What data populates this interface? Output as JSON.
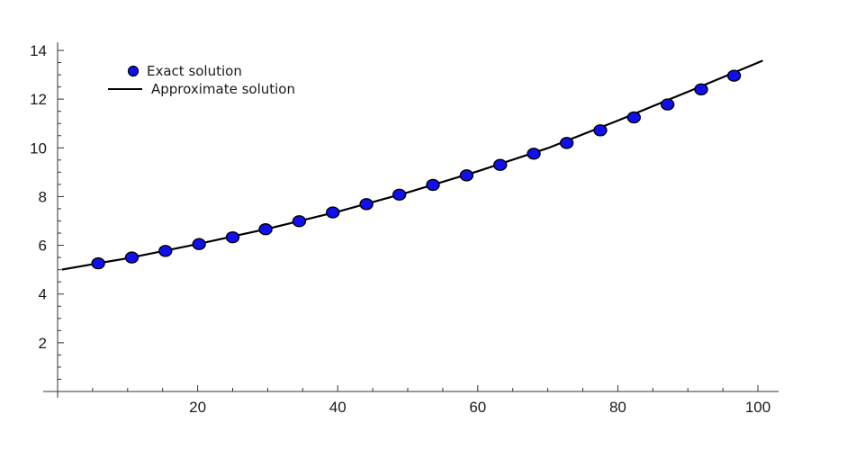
{
  "chart_data": {
    "type": "line",
    "title": "",
    "xlabel": "",
    "ylabel": "",
    "xlim": [
      0,
      103
    ],
    "ylim": [
      0,
      14.4
    ],
    "x_ticks": [
      20,
      40,
      60,
      80,
      100
    ],
    "y_ticks": [
      2,
      4,
      6,
      8,
      10,
      12,
      14
    ],
    "x_tick_labels": [
      "20",
      "40",
      "60",
      "80",
      "100"
    ],
    "y_tick_labels": [
      "2",
      "4",
      "6",
      "8",
      "10",
      "12",
      "14"
    ],
    "grid": false,
    "legend_position": "top-left",
    "series": [
      {
        "name": "Exact solution",
        "style": "markers",
        "color": "#1010ee",
        "edge_color": "#000000",
        "x": [
          5.8,
          10.6,
          15.4,
          20.2,
          25.0,
          29.7,
          34.5,
          39.3,
          44.1,
          48.8,
          53.6,
          58.4,
          63.2,
          68.0,
          72.7,
          77.5,
          82.3,
          87.1,
          91.9,
          96.6
        ],
        "y": [
          5.26,
          5.5,
          5.77,
          6.05,
          6.33,
          6.66,
          6.99,
          7.35,
          7.69,
          8.08,
          8.48,
          8.87,
          9.3,
          9.76,
          10.2,
          10.72,
          11.25,
          11.78,
          12.4,
          12.96
        ]
      },
      {
        "name": "Approximate solution",
        "style": "line",
        "color": "#000000",
        "x": [
          0.6,
          10,
          20,
          30,
          40,
          50,
          60,
          70,
          80,
          90,
          100.7
        ],
        "y": [
          5.0,
          5.47,
          6.05,
          6.68,
          7.38,
          8.17,
          9.04,
          9.99,
          11.12,
          12.3,
          13.58
        ]
      }
    ]
  }
}
